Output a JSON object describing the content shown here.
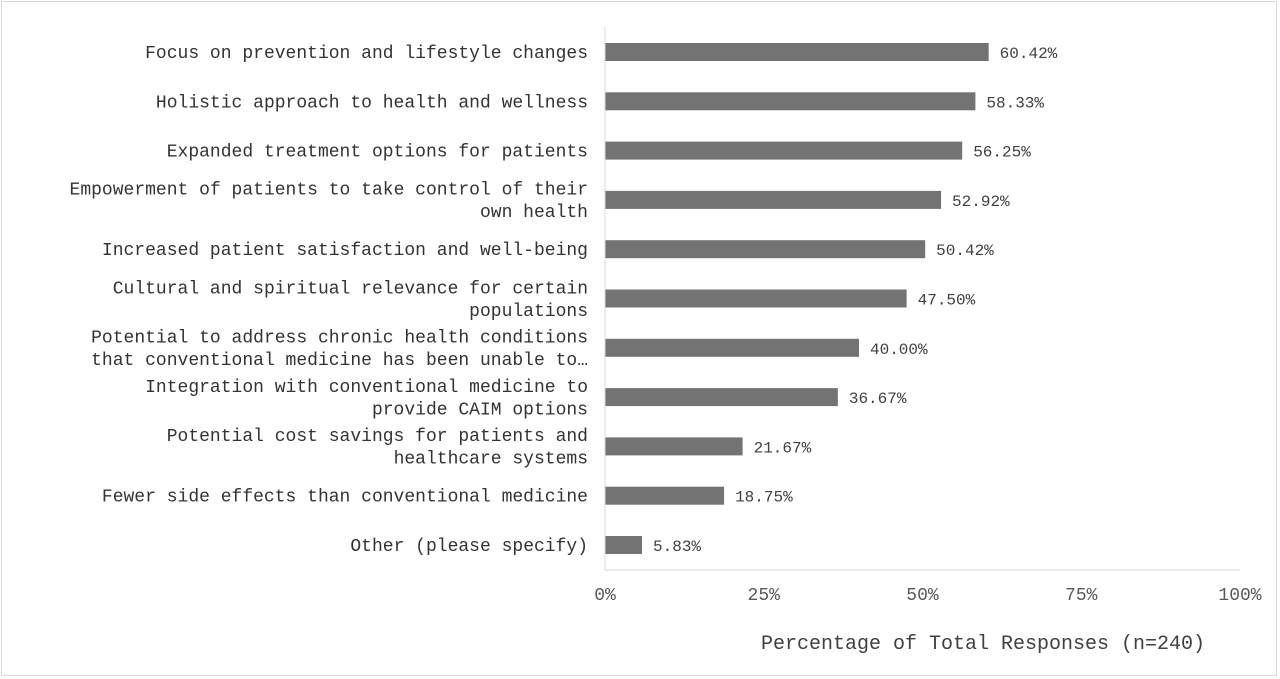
{
  "chart_data": {
    "type": "bar",
    "orientation": "horizontal",
    "categories": [
      [
        "Focus on prevention and lifestyle changes"
      ],
      [
        "Holistic approach to health and wellness"
      ],
      [
        "Expanded treatment options for patients"
      ],
      [
        "Empowerment of patients to take control of their",
        "own health"
      ],
      [
        "Increased patient satisfaction and well-being"
      ],
      [
        "Cultural and spiritual relevance for certain",
        "populations"
      ],
      [
        "Potential to address chronic health conditions",
        "that conventional medicine has been unable to…"
      ],
      [
        "Integration with conventional medicine to",
        "provide CAIM options"
      ],
      [
        "Potential cost savings for patients and",
        "healthcare systems"
      ],
      [
        "Fewer side effects than conventional medicine"
      ],
      [
        "Other (please specify)"
      ]
    ],
    "values": [
      60.42,
      58.33,
      56.25,
      52.92,
      50.42,
      47.5,
      40.0,
      36.67,
      21.67,
      18.75,
      5.83
    ],
    "data_labels": [
      "60.42%",
      "58.33%",
      "56.25%",
      "52.92%",
      "50.42%",
      "47.50%",
      "40.00%",
      "36.67%",
      "21.67%",
      "18.75%",
      "5.83%"
    ],
    "xticks": [
      "0%",
      "25%",
      "50%",
      "75%",
      "100%"
    ],
    "xlim": [
      0,
      100
    ],
    "xlabel": "Percentage of Total Responses (n=240)",
    "grid": false,
    "bar_color": "#737373"
  }
}
